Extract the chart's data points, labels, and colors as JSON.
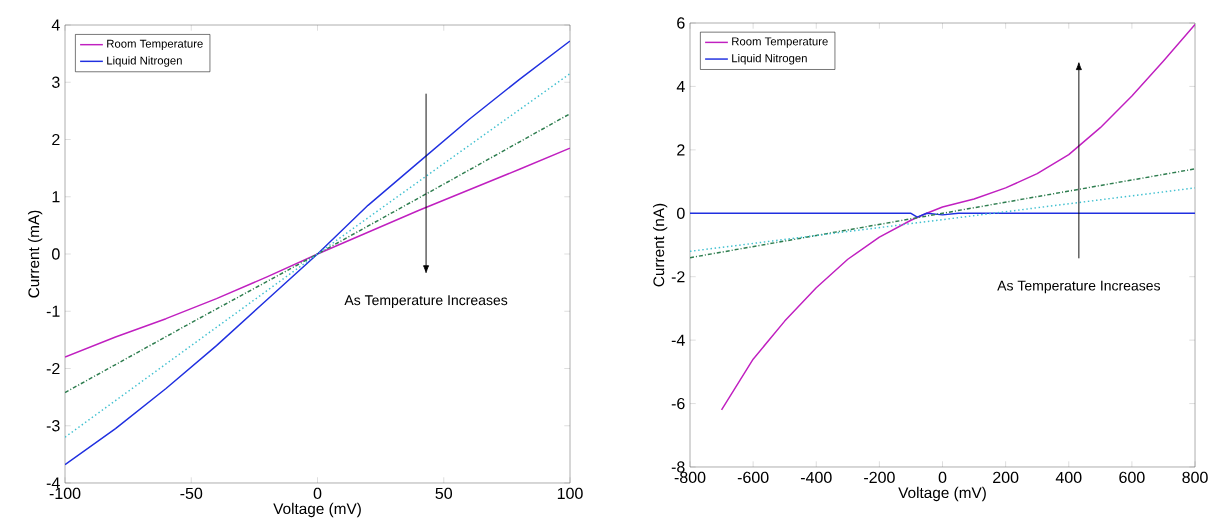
{
  "chart_data": [
    {
      "type": "line",
      "xlabel": "Voltage (mV)",
      "ylabel": "Current (mA)",
      "xlim": [
        -100,
        100
      ],
      "ylim": [
        -4,
        4
      ],
      "xticks": [
        -100,
        -50,
        0,
        50,
        100
      ],
      "yticks": [
        -4,
        -3,
        -2,
        -1,
        0,
        1,
        2,
        3,
        4
      ],
      "legend": "top left",
      "annotations": [
        "As Temperature Increases"
      ],
      "series": [
        {
          "name": "Room Temperature",
          "color": "#c020c0",
          "x": [
            -100,
            -80,
            -60,
            -40,
            -20,
            0,
            20,
            40,
            60,
            80,
            100
          ],
          "values": [
            -1.8,
            -1.45,
            -1.13,
            -0.78,
            -0.4,
            0,
            0.38,
            0.76,
            1.12,
            1.48,
            1.85
          ]
        },
        {
          "name": "Liquid Nitrogen",
          "color": "#2030e0",
          "x": [
            -100,
            -80,
            -60,
            -40,
            -20,
            0,
            20,
            40,
            60,
            80,
            100
          ],
          "values": [
            -3.68,
            -3.05,
            -2.35,
            -1.6,
            -0.8,
            0,
            0.85,
            1.6,
            2.35,
            3.05,
            3.72
          ]
        },
        {
          "color": "#2e7d4f",
          "line_style": "dashed",
          "x": [
            -100,
            -50,
            0,
            50,
            100
          ],
          "values": [
            -2.42,
            -1.2,
            0,
            1.22,
            2.45
          ]
        },
        {
          "color": "#40c0d0",
          "line_style": "dotted",
          "x": [
            -100,
            -50,
            0,
            50,
            100
          ],
          "values": [
            -3.2,
            -1.6,
            0,
            1.58,
            3.15
          ]
        }
      ]
    },
    {
      "type": "line",
      "xlabel": "Voltage (mV)",
      "ylabel": "Current (nA)",
      "xlim": [
        -800,
        800
      ],
      "ylim": [
        -8,
        6
      ],
      "xticks": [
        -800,
        -600,
        -400,
        -200,
        0,
        200,
        400,
        600,
        800
      ],
      "yticks": [
        -8,
        -6,
        -4,
        -2,
        0,
        2,
        4,
        6
      ],
      "legend": "top left",
      "annotations": [
        "As Temperature Increases"
      ],
      "series": [
        {
          "name": "Room Temperature",
          "color": "#c020c0",
          "x": [
            -700,
            -600,
            -500,
            -400,
            -300,
            -200,
            -100,
            -50,
            0,
            100,
            200,
            300,
            400,
            500,
            600,
            700,
            800
          ],
          "values": [
            -6.2,
            -4.6,
            -3.4,
            -2.35,
            -1.45,
            -0.75,
            -0.22,
            0,
            0.2,
            0.45,
            0.8,
            1.25,
            1.85,
            2.7,
            3.7,
            4.8,
            5.95
          ]
        },
        {
          "name": "Liquid Nitrogen",
          "color": "#2030e0",
          "x": [
            -800,
            -400,
            -100,
            -80,
            -50,
            0,
            50,
            400,
            800
          ],
          "values": [
            0,
            0,
            0,
            -0.12,
            0,
            -0.05,
            0,
            0,
            0
          ]
        },
        {
          "color": "#2e7d4f",
          "line_style": "dashed",
          "x": [
            -800,
            0,
            800
          ],
          "values": [
            -1.4,
            0,
            1.4
          ]
        },
        {
          "color": "#40c0d0",
          "line_style": "dotted",
          "x": [
            -800,
            0,
            800
          ],
          "values": [
            -1.2,
            -0.2,
            0.8
          ]
        }
      ]
    }
  ]
}
